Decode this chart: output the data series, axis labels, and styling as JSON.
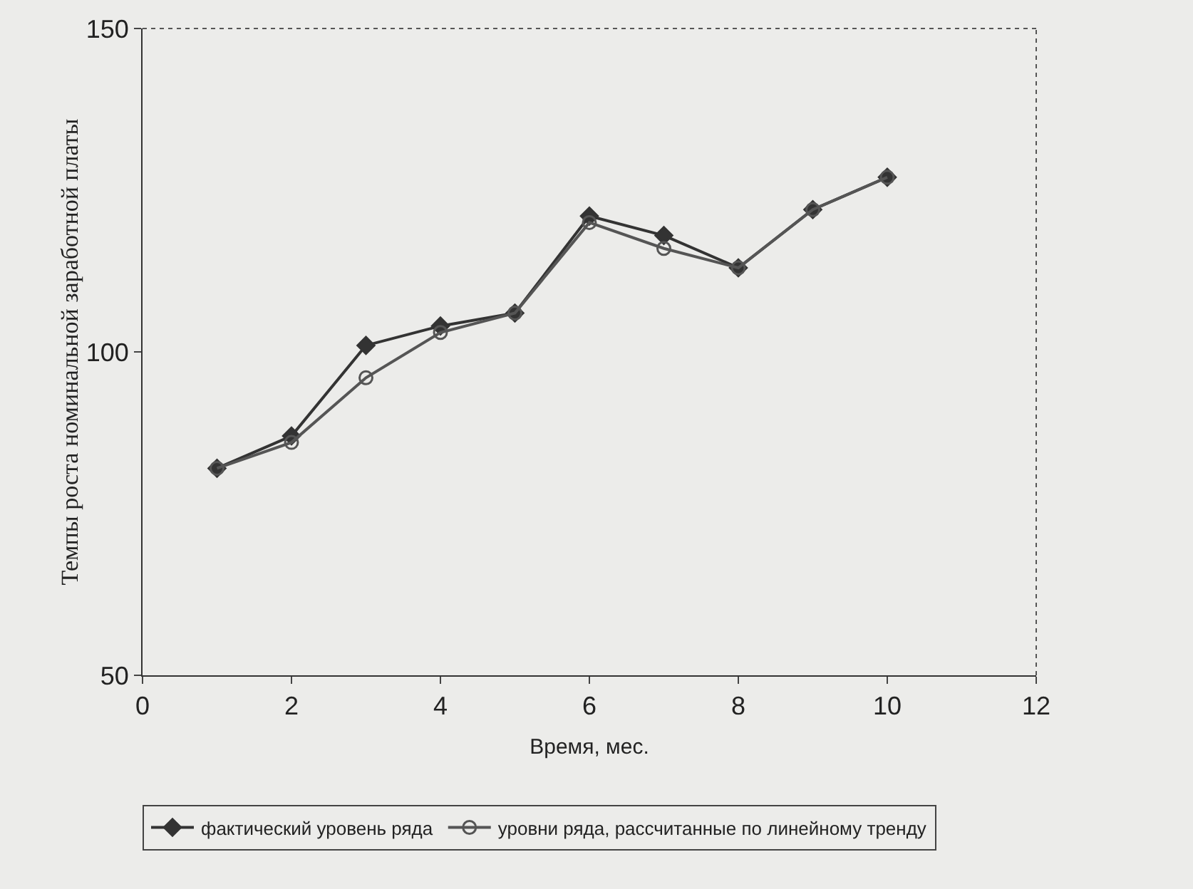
{
  "chart_data": {
    "type": "line",
    "xlabel": "Время, мес.",
    "ylabel": "Темпы роста номинальной заработной платы",
    "x": [
      1,
      2,
      3,
      4,
      5,
      6,
      7,
      8,
      9,
      10
    ],
    "series": [
      {
        "name": "фактический уровень ряда",
        "color": "#333333",
        "marker": "diamond",
        "values": [
          82,
          87,
          101,
          104,
          106,
          121,
          118,
          113,
          122,
          127
        ]
      },
      {
        "name": "уровни ряда, рассчитанные по линейному тренду",
        "color": "#555555",
        "marker": "circle",
        "values": [
          82,
          86,
          96,
          103,
          106,
          120,
          116,
          113,
          122,
          127
        ]
      }
    ],
    "xlim": [
      0,
      12
    ],
    "xticks": [
      0,
      2,
      4,
      6,
      8,
      10,
      12
    ],
    "ylim": [
      50,
      150
    ],
    "yticks": [
      50,
      100,
      150
    ],
    "grid": false,
    "legend": "bottom",
    "line_style": "solid"
  }
}
